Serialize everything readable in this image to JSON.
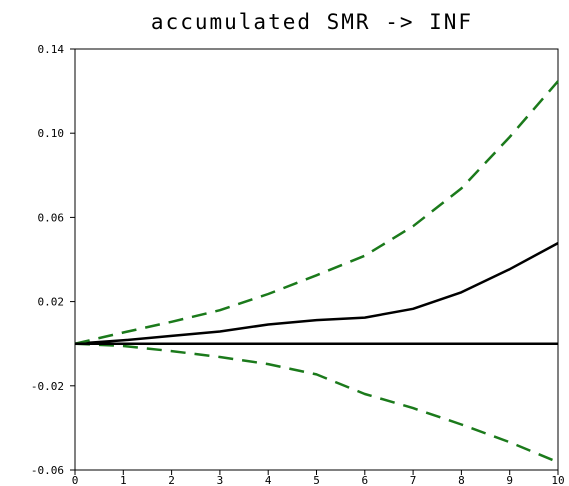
{
  "chart_data": {
    "type": "line",
    "title": "accumulated SMR -> INF",
    "xlabel": "",
    "ylabel": "",
    "x": [
      0,
      1,
      2,
      3,
      4,
      5,
      6,
      7,
      8,
      9,
      10
    ],
    "xlim": [
      0,
      10
    ],
    "ylim": [
      -0.06,
      0.14
    ],
    "xticks": [
      "0",
      "1",
      "2",
      "3",
      "4",
      "5",
      "6",
      "7",
      "8",
      "9",
      "10"
    ],
    "yticks": [
      "0.14",
      "0.10",
      "0.06",
      "0.02",
      "-0.02",
      "-0.06"
    ],
    "ytick_values": [
      0.14,
      0.1,
      0.06,
      0.02,
      -0.02,
      -0.06
    ],
    "grid": false,
    "series": [
      {
        "values": [
          0.0,
          0.0016,
          0.0037,
          0.0058,
          0.0091,
          0.0112,
          0.0124,
          0.0166,
          0.0244,
          0.0354,
          0.0478
        ],
        "color": "#000000",
        "style": "solid"
      },
      {
        "values": [
          0.0,
          0.0053,
          0.0104,
          0.0159,
          0.0236,
          0.0325,
          0.0418,
          0.0558,
          0.0738,
          0.0982,
          0.1247
        ],
        "color": "#1b7a1b",
        "style": "dashed"
      },
      {
        "values": [
          0.0,
          -0.0011,
          -0.0035,
          -0.0063,
          -0.0097,
          -0.0146,
          -0.0239,
          -0.0306,
          -0.0384,
          -0.0468,
          -0.0563
        ],
        "color": "#1b7a1b",
        "style": "dashed"
      },
      {
        "values": [
          0,
          0,
          0,
          0,
          0,
          0,
          0,
          0,
          0,
          0,
          0
        ],
        "color": "#000000",
        "style": "solid"
      }
    ]
  }
}
